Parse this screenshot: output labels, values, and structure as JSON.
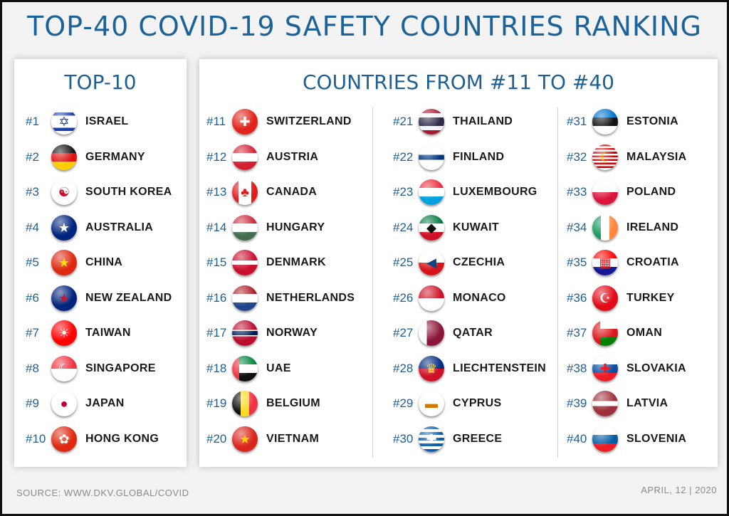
{
  "title": "TOP-40 COVID-19 SAFETY COUNTRIES RANKING",
  "left_panel": {
    "title": "TOP-10",
    "items": [
      {
        "rank": "#1",
        "name": "ISRAEL",
        "flag": "israel-flag-icon",
        "bg": "linear-gradient(#fff 0 14%, #1a3ea8 14% 26%, #fff 26% 74%, #1a3ea8 74% 86%, #fff 86%)",
        "symbol": "✡",
        "sc": "#1a3ea8"
      },
      {
        "rank": "#2",
        "name": "GERMANY",
        "flag": "germany-flag-icon",
        "bg": "linear-gradient(#111 0 33.3%, #dd1010 33.3% 66.6%, #ffcc00 66.6%)",
        "symbol": "",
        "sc": ""
      },
      {
        "rank": "#3",
        "name": "SOUTH KOREA",
        "flag": "south-korea-flag-icon",
        "bg": "#ffffff",
        "symbol": "☯",
        "sc": "#c8102e"
      },
      {
        "rank": "#4",
        "name": "AUSTRALIA",
        "flag": "australia-flag-icon",
        "bg": "#00247d",
        "symbol": "★",
        "sc": "#ffffff"
      },
      {
        "rank": "#5",
        "name": "CHINA",
        "flag": "china-flag-icon",
        "bg": "#de2910",
        "symbol": "★",
        "sc": "#ffde00"
      },
      {
        "rank": "#6",
        "name": "NEW ZEALAND",
        "flag": "new-zealand-flag-icon",
        "bg": "#00247d",
        "symbol": "★",
        "sc": "#cc142b"
      },
      {
        "rank": "#7",
        "name": "TAIWAN",
        "flag": "taiwan-flag-icon",
        "bg": "linear-gradient(#fe0000 0 100%)",
        "symbol": "☀",
        "sc": "#ffffff"
      },
      {
        "rank": "#8",
        "name": "SINGAPORE",
        "flag": "singapore-flag-icon",
        "bg": "linear-gradient(#ef3340 0 50%, #fff 50%)",
        "symbol": "☾",
        "sc": "#ffffff"
      },
      {
        "rank": "#9",
        "name": "JAPAN",
        "flag": "japan-flag-icon",
        "bg": "#ffffff",
        "symbol": "●",
        "sc": "#bc002d"
      },
      {
        "rank": "#10",
        "name": "HONG KONG",
        "flag": "hong-kong-flag-icon",
        "bg": "#de2910",
        "symbol": "✿",
        "sc": "#ffffff"
      }
    ]
  },
  "right_panel": {
    "title": "COUNTRIES FROM #11 TO #40",
    "columns": [
      [
        {
          "rank": "#11",
          "name": "SWITZERLAND",
          "flag": "switzerland-flag-icon",
          "bg": "#e2231a",
          "symbol": "✚",
          "sc": "#ffffff"
        },
        {
          "rank": "#12",
          "name": "AUSTRIA",
          "flag": "austria-flag-icon",
          "bg": "linear-gradient(#d22030 0 33.3%, #fff 33.3% 66.6%, #d22030 66.6%)",
          "symbol": "",
          "sc": ""
        },
        {
          "rank": "#13",
          "name": "CANADA",
          "flag": "canada-flag-icon",
          "bg": "linear-gradient(90deg, #e01e1e 0 25%, #fff 25% 75%, #e01e1e 75%)",
          "symbol": "♣",
          "sc": "#e01e1e"
        },
        {
          "rank": "#14",
          "name": "HUNGARY",
          "flag": "hungary-flag-icon",
          "bg": "linear-gradient(#cd2a3e 0 33.3%, #fff 33.3% 66.6%, #436f4d 66.6%)",
          "symbol": "",
          "sc": ""
        },
        {
          "rank": "#15",
          "name": "DENMARK",
          "flag": "denmark-flag-icon",
          "bg": "linear-gradient(#c8102e 0 42%, #fff 42% 58%, #c8102e 58%)",
          "symbol": "",
          "sc": ""
        },
        {
          "rank": "#16",
          "name": "NETHERLANDS",
          "flag": "netherlands-flag-icon",
          "bg": "linear-gradient(#ae1c28 0 33.3%, #fff 33.3% 66.6%, #21468b 66.6%)",
          "symbol": "",
          "sc": ""
        },
        {
          "rank": "#17",
          "name": "NORWAY",
          "flag": "norway-flag-icon",
          "bg": "linear-gradient(#ba0c2f 0 38%, #fff 38% 42%, #00205b 42% 58%, #fff 58% 62%, #ba0c2f 62%)",
          "symbol": "",
          "sc": ""
        },
        {
          "rank": "#18",
          "name": "UAE",
          "flag": "uae-flag-icon",
          "bg": "linear-gradient(90deg, #ef3340 0 28%, transparent 28%), linear-gradient(#00843d 0 33.3%, #fff 33.3% 66.6%, #111 66.6%)",
          "symbol": "",
          "sc": ""
        },
        {
          "rank": "#19",
          "name": "BELGIUM",
          "flag": "belgium-flag-icon",
          "bg": "linear-gradient(90deg, #111 0 33.3%, #fdda24 33.3% 66.6%, #ef3340 66.6%)",
          "symbol": "",
          "sc": ""
        },
        {
          "rank": "#20",
          "name": "VIETNAM",
          "flag": "vietnam-flag-icon",
          "bg": "#da251d",
          "symbol": "★",
          "sc": "#ffcd00"
        }
      ],
      [
        {
          "rank": "#21",
          "name": "THAILAND",
          "flag": "thailand-flag-icon",
          "bg": "linear-gradient(#a51931 0 17%, #f4f5f8 17% 33%, #2d2a4a 33% 67%, #f4f5f8 67% 83%, #a51931 83%)",
          "symbol": "",
          "sc": ""
        },
        {
          "rank": "#22",
          "name": "FINLAND",
          "flag": "finland-flag-icon",
          "bg": "linear-gradient(#fff 0 40%, #003580 40% 60%, #fff 60%)",
          "symbol": "",
          "sc": ""
        },
        {
          "rank": "#23",
          "name": "LUXEMBOURG",
          "flag": "luxembourg-flag-icon",
          "bg": "linear-gradient(#ed2939 0 33.3%, #fff 33.3% 66.6%, #00a1de 66.6%)",
          "symbol": "",
          "sc": ""
        },
        {
          "rank": "#24",
          "name": "KUWAIT",
          "flag": "kuwait-flag-icon",
          "bg": "linear-gradient(#007a3d 0 33.3%, #fff 33.3% 66.6%, #ce1126 66.6%)",
          "symbol": "◆",
          "sc": "#111111"
        },
        {
          "rank": "#25",
          "name": "CZECHIA",
          "flag": "czechia-flag-icon",
          "bg": "linear-gradient(#fff 0 50%, #d7141a 50%)",
          "symbol": "◀",
          "sc": "#11457e"
        },
        {
          "rank": "#26",
          "name": "MONACO",
          "flag": "monaco-flag-icon",
          "bg": "linear-gradient(#ce1126 0 50%, #fff 50%)",
          "symbol": "",
          "sc": ""
        },
        {
          "rank": "#27",
          "name": "QATAR",
          "flag": "qatar-flag-icon",
          "bg": "linear-gradient(90deg, #fff 0 32%, #8a1538 32%)",
          "symbol": "",
          "sc": ""
        },
        {
          "rank": "#28",
          "name": "LIECHTENSTEIN",
          "flag": "liechtenstein-flag-icon",
          "bg": "linear-gradient(#002b7f 0 50%, #ce1126 50%)",
          "symbol": "♛",
          "sc": "#ffd83d"
        },
        {
          "rank": "#29",
          "name": "CYPRUS",
          "flag": "cyprus-flag-icon",
          "bg": "#ffffff",
          "symbol": "▬",
          "sc": "#d57800"
        },
        {
          "rank": "#30",
          "name": "GREECE",
          "flag": "greece-flag-icon",
          "bg": "repeating-linear-gradient(#0d5eaf 0 11.1%, #fff 11.1% 22.2%)",
          "symbol": "✚",
          "sc": "#ffffff"
        }
      ],
      [
        {
          "rank": "#31",
          "name": "ESTONIA",
          "flag": "estonia-flag-icon",
          "bg": "linear-gradient(#0072ce 0 33.3%, #111 33.3% 66.6%, #fff 66.6%)",
          "symbol": "",
          "sc": ""
        },
        {
          "rank": "#32",
          "name": "MALAYSIA",
          "flag": "malaysia-flag-icon",
          "bg": "repeating-linear-gradient(#cc0001 0 7.1%, #fff 7.1% 14.2%)",
          "symbol": "☾",
          "sc": "#ffcc00"
        },
        {
          "rank": "#33",
          "name": "POLAND",
          "flag": "poland-flag-icon",
          "bg": "linear-gradient(#fff 0 50%, #dc143c 50%)",
          "symbol": "",
          "sc": ""
        },
        {
          "rank": "#34",
          "name": "IRELAND",
          "flag": "ireland-flag-icon",
          "bg": "linear-gradient(90deg, #169b62 0 33.3%, #fff 33.3% 66.6%, #ff883e 66.6%)",
          "symbol": "",
          "sc": ""
        },
        {
          "rank": "#35",
          "name": "CROATIA",
          "flag": "croatia-flag-icon",
          "bg": "linear-gradient(#ff0000 0 33.3%, #fff 33.3% 66.6%, #171796 66.6%)",
          "symbol": "▦",
          "sc": "#d8232a"
        },
        {
          "rank": "#36",
          "name": "TURKEY",
          "flag": "turkey-flag-icon",
          "bg": "#e30a17",
          "symbol": "☪",
          "sc": "#ffffff"
        },
        {
          "rank": "#37",
          "name": "OMAN",
          "flag": "oman-flag-icon",
          "bg": "linear-gradient(90deg, #db161b 0 30%, transparent 30%), linear-gradient(#fff 0 33.3%, #db161b 33.3% 66.6%, #008000 66.6%)",
          "symbol": "",
          "sc": ""
        },
        {
          "rank": "#38",
          "name": "SLOVAKIA",
          "flag": "slovakia-flag-icon",
          "bg": "linear-gradient(#fff 0 33.3%, #0b4ea2 33.3% 66.6%, #ee1c25 66.6%)",
          "symbol": "✚",
          "sc": "#ee1c25"
        },
        {
          "rank": "#39",
          "name": "LATVIA",
          "flag": "latvia-flag-icon",
          "bg": "linear-gradient(#9e3039 0 40%, #fff 40% 60%, #9e3039 60%)",
          "symbol": "",
          "sc": ""
        },
        {
          "rank": "#40",
          "name": "SLOVENIA",
          "flag": "slovenia-flag-icon",
          "bg": "linear-gradient(#fff 0 33.3%, #005da4 33.3% 66.6%, #ed1c24 66.6%)",
          "symbol": "",
          "sc": ""
        }
      ]
    ]
  },
  "footer": {
    "source": "SOURCE: WWW.DKV.GLOBAL/COVID",
    "date": "APRIL, 12 | 2020"
  },
  "colors": {
    "accent": "#1a6299",
    "rank": "#1f5f91",
    "text": "#1a1a1a",
    "muted": "#8a8a8a"
  }
}
